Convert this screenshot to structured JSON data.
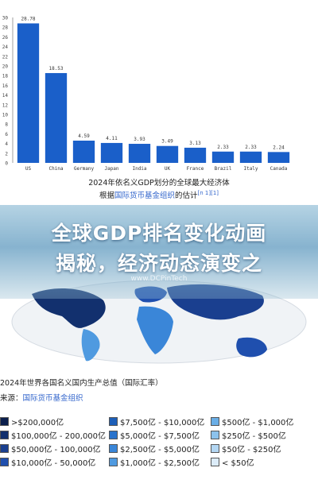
{
  "chart_data": {
    "type": "bar",
    "categories": [
      "US",
      "China",
      "Germany",
      "Japan",
      "India",
      "UK",
      "France",
      "Brazil",
      "Italy",
      "Canada"
    ],
    "values": [
      28.78,
      18.53,
      4.59,
      4.11,
      3.93,
      3.49,
      3.13,
      2.33,
      2.33,
      2.24
    ],
    "value_labels": [
      "28.78",
      "18.53",
      "4.59",
      "4.11",
      "3.93",
      "3.49",
      "3.13",
      "2.33",
      "2.33",
      "2.24"
    ],
    "ylim": [
      0,
      30
    ],
    "yticks": [
      "30",
      "28",
      "26",
      "24",
      "22",
      "20",
      "18",
      "16",
      "14",
      "12",
      "10",
      "8",
      "6",
      "4",
      "2",
      "0"
    ],
    "bar_color": "#1a5fc9",
    "caption_line1": "2024年依名义GDP划分的全球最大经济体",
    "caption_line2_prefix": "根据",
    "caption_line2_link": "国际货币基金组织",
    "caption_line2_suffix": "的估计",
    "caption_refs": "[n 1][1]"
  },
  "banner": {
    "line1": "全球GDP排名变化动画",
    "line2": "揭秘，经济动态演变之",
    "watermark": "www.DCPinTech"
  },
  "map": {
    "title": "2024年世界各国名义国内生产总值（国际汇率）",
    "source_prefix": "来源：",
    "source_link": "国际货币基金组织",
    "legend": [
      {
        "label": ">$200,000亿",
        "color": "#0b1f4d"
      },
      {
        "label": "$100,000亿 - 200,000亿",
        "color": "#12306e"
      },
      {
        "label": "$50,000亿 - 100,000亿",
        "color": "#1a3f8f"
      },
      {
        "label": "$10,000亿 - 50,000亿",
        "color": "#1f4fae"
      },
      {
        "label": "$7,500亿 - $10,000亿",
        "color": "#1d5fb8"
      },
      {
        "label": "$5,000亿 - $7,500亿",
        "color": "#2a73cc"
      },
      {
        "label": "$2,500亿 - $5,000亿",
        "color": "#3a86d8"
      },
      {
        "label": "$1,000亿 - $2,500亿",
        "color": "#4f9ae0"
      },
      {
        "label": "$500亿 - $1,000亿",
        "color": "#6aaee6"
      },
      {
        "label": "$250亿 - $500亿",
        "color": "#8cc2ec"
      },
      {
        "label": "$50亿 - $250亿",
        "color": "#b3d6f2"
      },
      {
        "label": "< $50亿",
        "color": "#dcecf9"
      }
    ]
  }
}
